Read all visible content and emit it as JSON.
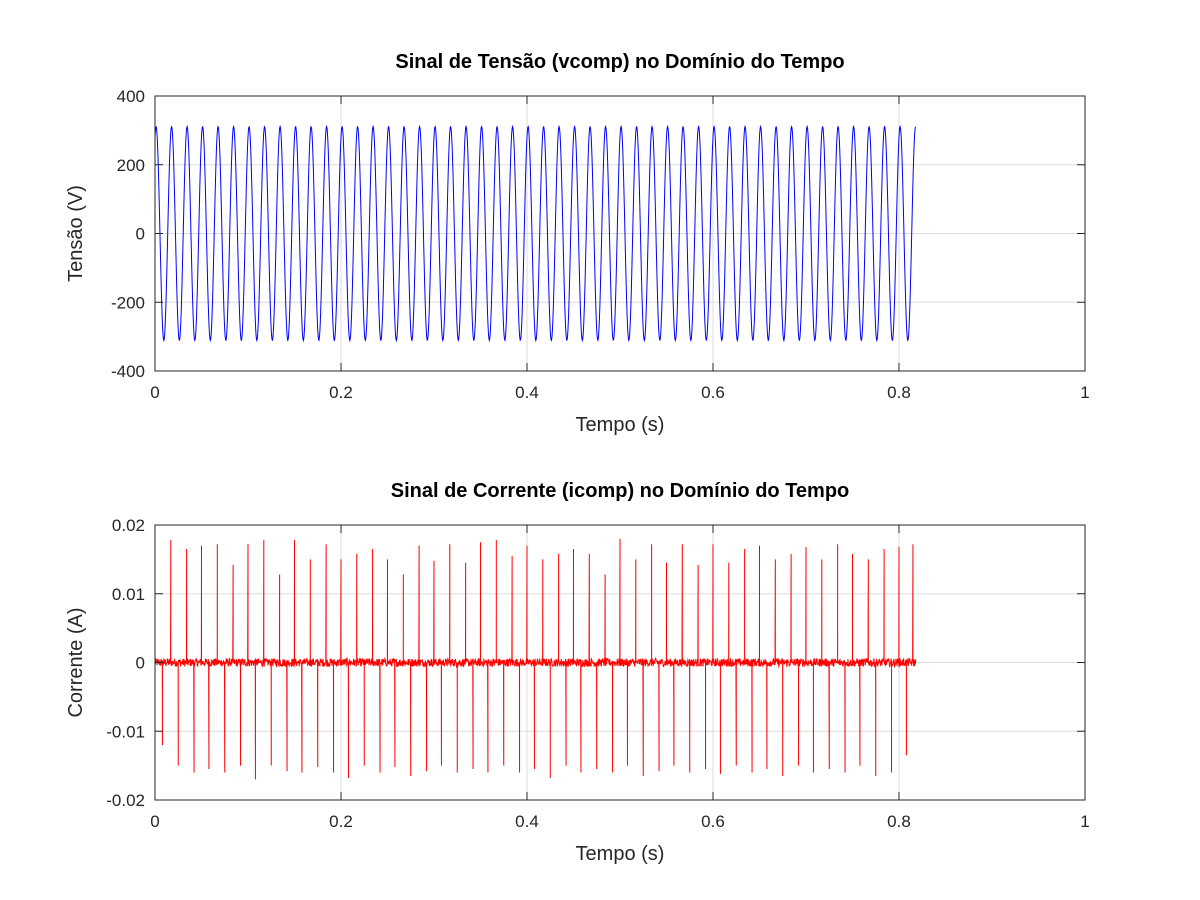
{
  "chart_data": [
    {
      "type": "line",
      "title": "Sinal de Tensão (vcomp) no Domínio do Tempo",
      "xlabel": "Tempo (s)",
      "ylabel": "Tensão (V)",
      "xlim": [
        0,
        1
      ],
      "ylim": [
        -400,
        400
      ],
      "xticks": [
        0,
        0.2,
        0.4,
        0.6,
        0.8,
        1
      ],
      "xtick_labels": [
        "0",
        "0.2",
        "0.4",
        "0.6",
        "0.8",
        "1"
      ],
      "yticks": [
        400,
        200,
        0,
        -200,
        -400
      ],
      "ytick_labels": [
        "400",
        "200",
        "0",
        "-200",
        "-400"
      ],
      "grid": true,
      "series": [
        {
          "color": "#0000ff",
          "waveform": "sine",
          "amplitude": 311,
          "frequency_hz": 60,
          "t_start": 0,
          "t_end": 0.818,
          "samples": 1800
        }
      ]
    },
    {
      "type": "line",
      "title": "Sinal de Corrente (icomp) no Domínio do Tempo",
      "xlabel": "Tempo (s)",
      "ylabel": "Corrente (A)",
      "xlim": [
        0,
        1
      ],
      "ylim": [
        -0.02,
        0.02
      ],
      "xticks": [
        0,
        0.2,
        0.4,
        0.6,
        0.8,
        1
      ],
      "xtick_labels": [
        "0",
        "0.2",
        "0.4",
        "0.6",
        "0.8",
        "1"
      ],
      "yticks": [
        0.02,
        0.01,
        0,
        -0.01,
        -0.02
      ],
      "ytick_labels": [
        "0.02",
        "0.01",
        "0",
        "-0.01",
        "-0.02"
      ],
      "grid": true,
      "series": [
        {
          "color": "#ff0000",
          "waveform": "spikes",
          "t_start": 0,
          "t_end": 0.818,
          "noise_amplitude": 0.0006,
          "positive_spikes": [
            {
              "t": 0.017,
              "v": 0.0178
            },
            {
              "t": 0.034,
              "v": 0.0165
            },
            {
              "t": 0.05,
              "v": 0.017
            },
            {
              "t": 0.067,
              "v": 0.0172
            },
            {
              "t": 0.084,
              "v": 0.0142
            },
            {
              "t": 0.1,
              "v": 0.0172
            },
            {
              "t": 0.117,
              "v": 0.0178
            },
            {
              "t": 0.134,
              "v": 0.0128
            },
            {
              "t": 0.15,
              "v": 0.0178
            },
            {
              "t": 0.167,
              "v": 0.015
            },
            {
              "t": 0.184,
              "v": 0.0172
            },
            {
              "t": 0.2,
              "v": 0.015
            },
            {
              "t": 0.217,
              "v": 0.0158
            },
            {
              "t": 0.234,
              "v": 0.0165
            },
            {
              "t": 0.25,
              "v": 0.015
            },
            {
              "t": 0.267,
              "v": 0.0128
            },
            {
              "t": 0.284,
              "v": 0.017
            },
            {
              "t": 0.3,
              "v": 0.0148
            },
            {
              "t": 0.317,
              "v": 0.0172
            },
            {
              "t": 0.334,
              "v": 0.0145
            },
            {
              "t": 0.35,
              "v": 0.0175
            },
            {
              "t": 0.367,
              "v": 0.0178
            },
            {
              "t": 0.384,
              "v": 0.0155
            },
            {
              "t": 0.4,
              "v": 0.017
            },
            {
              "t": 0.417,
              "v": 0.015
            },
            {
              "t": 0.434,
              "v": 0.0158
            },
            {
              "t": 0.45,
              "v": 0.0165
            },
            {
              "t": 0.467,
              "v": 0.0158
            },
            {
              "t": 0.484,
              "v": 0.0128
            },
            {
              "t": 0.5,
              "v": 0.018
            },
            {
              "t": 0.517,
              "v": 0.015
            },
            {
              "t": 0.534,
              "v": 0.0172
            },
            {
              "t": 0.55,
              "v": 0.0145
            },
            {
              "t": 0.567,
              "v": 0.0172
            },
            {
              "t": 0.584,
              "v": 0.0142
            },
            {
              "t": 0.6,
              "v": 0.0172
            },
            {
              "t": 0.617,
              "v": 0.0145
            },
            {
              "t": 0.634,
              "v": 0.0165
            },
            {
              "t": 0.65,
              "v": 0.017
            },
            {
              "t": 0.667,
              "v": 0.015
            },
            {
              "t": 0.684,
              "v": 0.0158
            },
            {
              "t": 0.7,
              "v": 0.0168
            },
            {
              "t": 0.717,
              "v": 0.015
            },
            {
              "t": 0.734,
              "v": 0.0172
            },
            {
              "t": 0.75,
              "v": 0.0158
            },
            {
              "t": 0.767,
              "v": 0.015
            },
            {
              "t": 0.784,
              "v": 0.0165
            },
            {
              "t": 0.8,
              "v": 0.0168
            },
            {
              "t": 0.815,
              "v": 0.0172
            }
          ],
          "negative_spikes": [
            {
              "t": 0.008,
              "v": -0.012
            },
            {
              "t": 0.025,
              "v": -0.015
            },
            {
              "t": 0.042,
              "v": -0.016
            },
            {
              "t": 0.058,
              "v": -0.0155
            },
            {
              "t": 0.075,
              "v": -0.016
            },
            {
              "t": 0.092,
              "v": -0.015
            },
            {
              "t": 0.108,
              "v": -0.017
            },
            {
              "t": 0.125,
              "v": -0.015
            },
            {
              "t": 0.142,
              "v": -0.0158
            },
            {
              "t": 0.158,
              "v": -0.016
            },
            {
              "t": 0.175,
              "v": -0.0152
            },
            {
              "t": 0.192,
              "v": -0.016
            },
            {
              "t": 0.208,
              "v": -0.0168
            },
            {
              "t": 0.225,
              "v": -0.015
            },
            {
              "t": 0.242,
              "v": -0.016
            },
            {
              "t": 0.258,
              "v": -0.0152
            },
            {
              "t": 0.275,
              "v": -0.0165
            },
            {
              "t": 0.292,
              "v": -0.0158
            },
            {
              "t": 0.308,
              "v": -0.015
            },
            {
              "t": 0.325,
              "v": -0.016
            },
            {
              "t": 0.342,
              "v": -0.0155
            },
            {
              "t": 0.358,
              "v": -0.016
            },
            {
              "t": 0.375,
              "v": -0.015
            },
            {
              "t": 0.392,
              "v": -0.016
            },
            {
              "t": 0.408,
              "v": -0.0155
            },
            {
              "t": 0.425,
              "v": -0.0168
            },
            {
              "t": 0.442,
              "v": -0.015
            },
            {
              "t": 0.458,
              "v": -0.016
            },
            {
              "t": 0.475,
              "v": -0.0155
            },
            {
              "t": 0.492,
              "v": -0.016
            },
            {
              "t": 0.508,
              "v": -0.015
            },
            {
              "t": 0.525,
              "v": -0.0165
            },
            {
              "t": 0.542,
              "v": -0.0158
            },
            {
              "t": 0.558,
              "v": -0.015
            },
            {
              "t": 0.575,
              "v": -0.016
            },
            {
              "t": 0.592,
              "v": -0.0155
            },
            {
              "t": 0.608,
              "v": -0.0162
            },
            {
              "t": 0.625,
              "v": -0.015
            },
            {
              "t": 0.642,
              "v": -0.016
            },
            {
              "t": 0.658,
              "v": -0.0155
            },
            {
              "t": 0.675,
              "v": -0.0165
            },
            {
              "t": 0.692,
              "v": -0.015
            },
            {
              "t": 0.708,
              "v": -0.016
            },
            {
              "t": 0.725,
              "v": -0.0155
            },
            {
              "t": 0.742,
              "v": -0.016
            },
            {
              "t": 0.758,
              "v": -0.015
            },
            {
              "t": 0.775,
              "v": -0.0165
            },
            {
              "t": 0.792,
              "v": -0.016
            },
            {
              "t": 0.808,
              "v": -0.0135
            }
          ]
        }
      ]
    }
  ]
}
